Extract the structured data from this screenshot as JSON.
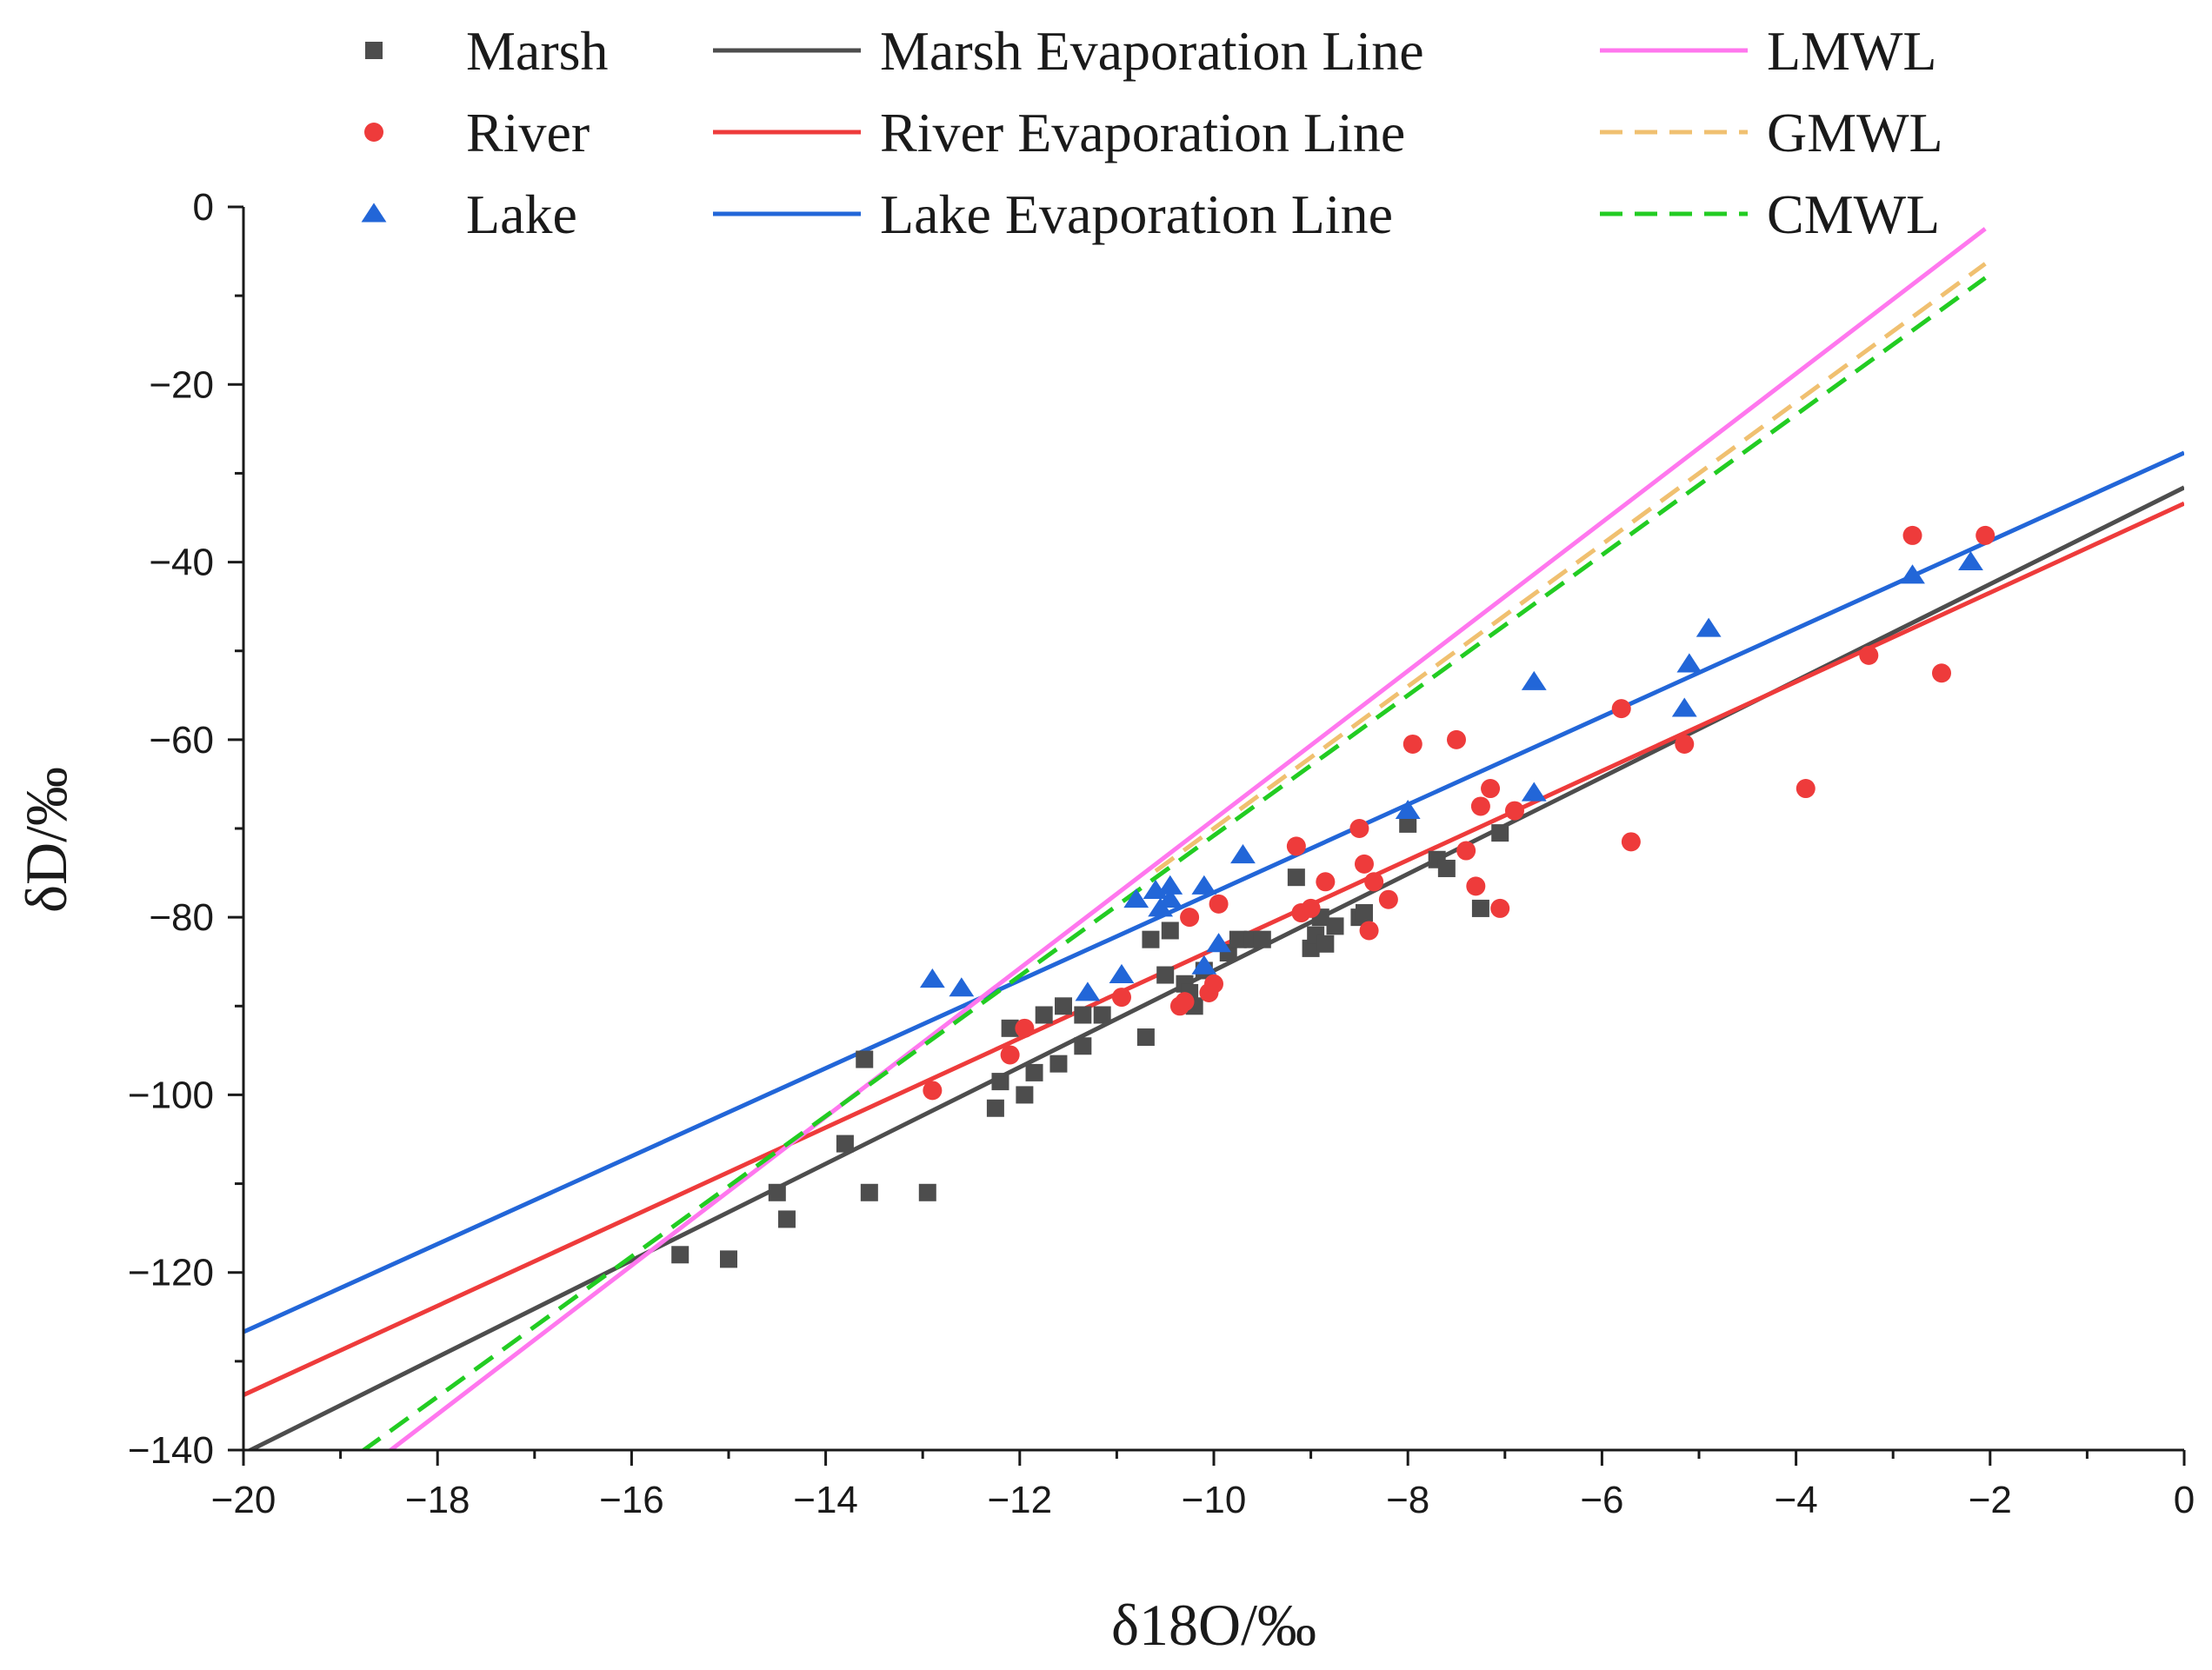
{
  "chart_data": {
    "type": "scatter",
    "xlabel": "δ18O/‰",
    "ylabel": "δD/‰",
    "xlim": [
      -20,
      0
    ],
    "ylim": [
      -140,
      0
    ],
    "x_ticks": [
      -20,
      -18,
      -16,
      -14,
      -12,
      -10,
      -8,
      -6,
      -4,
      -2,
      0
    ],
    "y_ticks": [
      0,
      -20,
      -40,
      -60,
      -80,
      -100,
      -120,
      -140
    ],
    "x_tick_labels": [
      "−20",
      "−18",
      "−16",
      "−14",
      "−12",
      "−10",
      "−8",
      "−6",
      "−4",
      "−2",
      "0"
    ],
    "y_tick_labels": [
      "0",
      "−20",
      "−40",
      "−60",
      "−80",
      "−100",
      "−120",
      "−140"
    ],
    "grid": false,
    "legend_position": "top",
    "colors": {
      "marsh": "#4d4d4d",
      "river": "#ee3b3b",
      "lake": "#2266d8",
      "lmwl": "#ff77ee",
      "gmwl": "#f0c070",
      "cmwl": "#22cc22",
      "axis": "#1a1a1a"
    },
    "series": [
      {
        "name": "Marsh",
        "marker": "square",
        "color": "#4d4d4d",
        "points": [
          [
            -15.5,
            -118
          ],
          [
            -15.0,
            -118.5
          ],
          [
            -14.5,
            -111
          ],
          [
            -14.4,
            -114
          ],
          [
            -13.8,
            -105.5
          ],
          [
            -13.6,
            -96
          ],
          [
            -13.55,
            -111
          ],
          [
            -12.95,
            -111
          ],
          [
            -12.25,
            -101.5
          ],
          [
            -12.2,
            -98.5
          ],
          [
            -12.1,
            -92.5
          ],
          [
            -11.95,
            -100
          ],
          [
            -11.85,
            -97.5
          ],
          [
            -11.75,
            -91
          ],
          [
            -11.6,
            -96.5
          ],
          [
            -11.55,
            -90
          ],
          [
            -11.35,
            -94.5
          ],
          [
            -11.35,
            -91
          ],
          [
            -11.15,
            -91
          ],
          [
            -10.7,
            -93.5
          ],
          [
            -10.65,
            -82.5
          ],
          [
            -10.5,
            -86.5
          ],
          [
            -10.45,
            -81.5
          ],
          [
            -10.3,
            -87.5
          ],
          [
            -10.25,
            -88.5
          ],
          [
            -10.2,
            -90
          ],
          [
            -10.1,
            -86
          ],
          [
            -9.85,
            -84
          ],
          [
            -9.75,
            -82.5
          ],
          [
            -9.6,
            -82.5
          ],
          [
            -9.5,
            -82.5
          ],
          [
            -9.15,
            -75.5
          ],
          [
            -9.0,
            -83.5
          ],
          [
            -8.95,
            -82
          ],
          [
            -8.9,
            -80
          ],
          [
            -8.85,
            -83
          ],
          [
            -8.75,
            -81
          ],
          [
            -8.5,
            -80
          ],
          [
            -8.45,
            -79.5
          ],
          [
            -8.0,
            -69.5
          ],
          [
            -7.7,
            -73.5
          ],
          [
            -7.6,
            -74.5
          ],
          [
            -7.25,
            -79
          ],
          [
            -7.05,
            -70.5
          ]
        ]
      },
      {
        "name": "River",
        "marker": "circle",
        "color": "#ee3b3b",
        "points": [
          [
            -12.9,
            -99.5
          ],
          [
            -12.1,
            -95.5
          ],
          [
            -11.95,
            -92.5
          ],
          [
            -10.95,
            -89
          ],
          [
            -10.35,
            -90
          ],
          [
            -10.3,
            -89.5
          ],
          [
            -10.25,
            -80
          ],
          [
            -10.05,
            -88.5
          ],
          [
            -10.0,
            -87.5
          ],
          [
            -9.95,
            -78.5
          ],
          [
            -9.15,
            -72
          ],
          [
            -9.1,
            -79.5
          ],
          [
            -9.0,
            -79
          ],
          [
            -8.85,
            -76
          ],
          [
            -8.5,
            -70
          ],
          [
            -8.45,
            -74
          ],
          [
            -8.4,
            -81.5
          ],
          [
            -8.35,
            -76
          ],
          [
            -8.2,
            -78
          ],
          [
            -7.95,
            -60.5
          ],
          [
            -7.5,
            -60
          ],
          [
            -7.4,
            -72.5
          ],
          [
            -7.3,
            -76.5
          ],
          [
            -7.25,
            -67.5
          ],
          [
            -7.15,
            -65.5
          ],
          [
            -7.05,
            -79
          ],
          [
            -6.9,
            -68
          ],
          [
            -5.8,
            -56.5
          ],
          [
            -5.7,
            -71.5
          ],
          [
            -5.15,
            -60.5
          ],
          [
            -3.9,
            -65.5
          ],
          [
            -3.25,
            -50.5
          ],
          [
            -2.8,
            -37
          ],
          [
            -2.5,
            -52.5
          ],
          [
            -2.05,
            -37
          ]
        ]
      },
      {
        "name": "Lake",
        "marker": "triangle",
        "color": "#2266d8",
        "points": [
          [
            -12.9,
            -87
          ],
          [
            -12.6,
            -88
          ],
          [
            -11.3,
            -88.5
          ],
          [
            -10.95,
            -86.5
          ],
          [
            -10.8,
            -78
          ],
          [
            -10.6,
            -77
          ],
          [
            -10.55,
            -79
          ],
          [
            -10.45,
            -76.5
          ],
          [
            -10.45,
            -78
          ],
          [
            -10.1,
            -76.5
          ],
          [
            -10.1,
            -85.5
          ],
          [
            -9.95,
            -83
          ],
          [
            -9.7,
            -73
          ],
          [
            -8.0,
            -68
          ],
          [
            -6.7,
            -53.5
          ],
          [
            -6.7,
            -66
          ],
          [
            -5.1,
            -51.5
          ],
          [
            -5.15,
            -56.5
          ],
          [
            -4.9,
            -47.5
          ],
          [
            -2.8,
            -41.5
          ],
          [
            -2.2,
            -40
          ]
        ]
      }
    ],
    "lines": [
      {
        "name": "Marsh Evaporation Line",
        "style": "solid",
        "color": "#4d4d4d",
        "slope": 5.44,
        "intercept": -31.6,
        "x_range": [
          -20,
          0
        ]
      },
      {
        "name": "River Evaporation Line",
        "style": "solid",
        "color": "#ee3b3b",
        "slope": 5.02,
        "intercept": -33.4,
        "x_range": [
          -20,
          0
        ]
      },
      {
        "name": "Lake Evaporation Line",
        "style": "solid",
        "color": "#2266d8",
        "slope": 4.95,
        "intercept": -27.7,
        "x_range": [
          -20,
          0
        ]
      },
      {
        "name": "LMWL",
        "style": "solid",
        "color": "#ff77ee",
        "slope": 8.37,
        "intercept": 14.7,
        "x_range": [
          -18.5,
          -2.05
        ]
      },
      {
        "name": "GMWL",
        "style": "dashed",
        "color": "#f0c070",
        "slope": 8.0,
        "intercept": 10.0,
        "x_range": [
          -10.6,
          -2.05
        ]
      },
      {
        "name": "CMWL",
        "style": "dashed",
        "color": "#22cc22",
        "slope": 7.9,
        "intercept": 8.2,
        "x_range": [
          -18.78,
          -2.05
        ]
      }
    ],
    "legend": [
      {
        "label": "Marsh",
        "kind": "square",
        "color": "#4d4d4d"
      },
      {
        "label": "River",
        "kind": "circle",
        "color": "#ee3b3b"
      },
      {
        "label": "Lake",
        "kind": "triangle",
        "color": "#2266d8"
      },
      {
        "label": "Marsh Evaporation Line",
        "kind": "solid",
        "color": "#4d4d4d"
      },
      {
        "label": "River Evaporation Line",
        "kind": "solid",
        "color": "#ee3b3b"
      },
      {
        "label": "Lake Evaporation Line",
        "kind": "solid",
        "color": "#2266d8"
      },
      {
        "label": "LMWL",
        "kind": "solid",
        "color": "#ff77ee"
      },
      {
        "label": "GMWL",
        "kind": "dashed",
        "color": "#f0c070"
      },
      {
        "label": "CMWL",
        "kind": "dashed",
        "color": "#22cc22"
      }
    ]
  }
}
